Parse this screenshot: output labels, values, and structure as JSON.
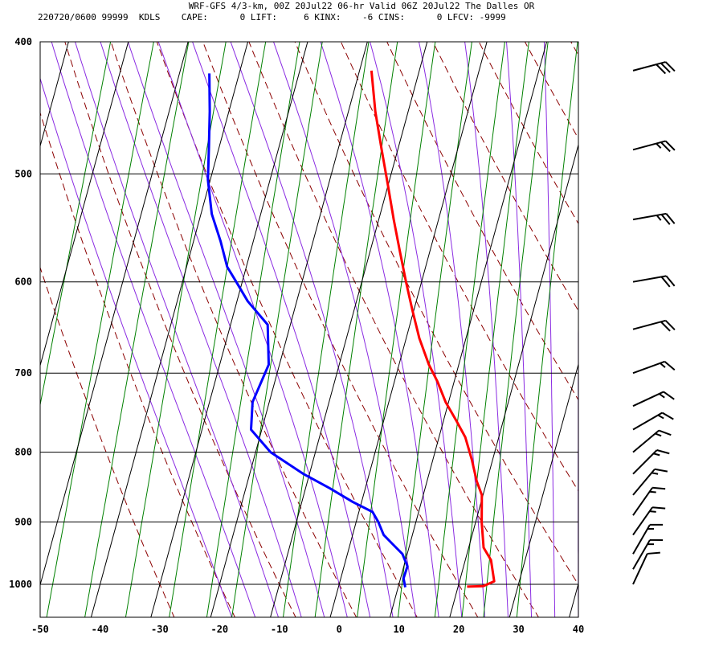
{
  "header": {
    "line1": "WRF-GFS 4/3-km, 00Z 20Jul22 06-hr Valid 06Z 20Jul22 The Dalles OR",
    "line2": "220720/0600 99999  KDLS    CAPE:      0 LIFT:     6 KINX:    -6 CINS:      0 LFCV: -9999"
  },
  "chart_data": {
    "type": "line",
    "chart_kind": "skew-T log-P sounding",
    "x_axis": {
      "ticks": [
        -50,
        -40,
        -30,
        -20,
        -10,
        0,
        10,
        20,
        30,
        40
      ],
      "range": [
        -50,
        40
      ]
    },
    "y_axis": {
      "ticks": [
        400,
        500,
        600,
        700,
        800,
        900,
        1000
      ],
      "range": [
        400,
        1040
      ],
      "scale": "log"
    },
    "grid": true,
    "series": [
      {
        "color": "#ff0000",
        "points": [
          [
            -18.0,
            420
          ],
          [
            -15.5,
            450
          ],
          [
            -12.7,
            480
          ],
          [
            -10.0,
            510
          ],
          [
            -7.5,
            540
          ],
          [
            -5.0,
            570
          ],
          [
            -2.6,
            600
          ],
          [
            -0.2,
            630
          ],
          [
            2.2,
            660
          ],
          [
            5.0,
            690
          ],
          [
            7.2,
            710
          ],
          [
            9.5,
            735
          ],
          [
            12.3,
            760
          ],
          [
            14.4,
            780
          ],
          [
            16.5,
            810
          ],
          [
            18.3,
            840
          ],
          [
            19.8,
            860
          ],
          [
            21.0,
            900
          ],
          [
            22.5,
            940
          ],
          [
            24.3,
            960
          ],
          [
            25.8,
            995
          ],
          [
            24.2,
            1003
          ],
          [
            21.5,
            1004
          ]
        ]
      },
      {
        "color": "#0000ff",
        "points": [
          [
            -45.0,
            422
          ],
          [
            -43.2,
            450
          ],
          [
            -41.6,
            480
          ],
          [
            -40.4,
            505
          ],
          [
            -38.2,
            535
          ],
          [
            -35.5,
            560
          ],
          [
            -33.2,
            585
          ],
          [
            -31.0,
            600
          ],
          [
            -28.2,
            620
          ],
          [
            -23.8,
            645
          ],
          [
            -21.8,
            690
          ],
          [
            -22.8,
            735
          ],
          [
            -21.8,
            770
          ],
          [
            -17.5,
            800
          ],
          [
            -11.0,
            830
          ],
          [
            -6.0,
            850
          ],
          [
            -1.5,
            870
          ],
          [
            2.3,
            885
          ],
          [
            3.7,
            900
          ],
          [
            5.2,
            920
          ],
          [
            7.2,
            935
          ],
          [
            9.2,
            950
          ],
          [
            10.6,
            970
          ],
          [
            10.5,
            990
          ],
          [
            11.2,
            1005
          ]
        ]
      }
    ],
    "wind_barbs": [
      {
        "p": 420,
        "speed": 30,
        "dir": 255
      },
      {
        "p": 480,
        "speed": 25,
        "dir": 255
      },
      {
        "p": 540,
        "speed": 25,
        "dir": 260
      },
      {
        "p": 600,
        "speed": 20,
        "dir": 260
      },
      {
        "p": 650,
        "speed": 20,
        "dir": 255
      },
      {
        "p": 700,
        "speed": 15,
        "dir": 250
      },
      {
        "p": 740,
        "speed": 15,
        "dir": 245
      },
      {
        "p": 770,
        "speed": 15,
        "dir": 240
      },
      {
        "p": 800,
        "speed": 15,
        "dir": 230
      },
      {
        "p": 830,
        "speed": 15,
        "dir": 225
      },
      {
        "p": 860,
        "speed": 15,
        "dir": 220
      },
      {
        "p": 890,
        "speed": 15,
        "dir": 215
      },
      {
        "p": 920,
        "speed": 15,
        "dir": 215
      },
      {
        "p": 950,
        "speed": 15,
        "dir": 210
      },
      {
        "p": 975,
        "speed": 15,
        "dir": 210
      },
      {
        "p": 1000,
        "speed": 10,
        "dir": 205
      }
    ],
    "colors": {
      "isotherm": "#000000",
      "isobar": "#000000",
      "dry_adiabat": "#8b0000",
      "moist_adiabat": "#8a2be2",
      "mixing_ratio": "#008000"
    }
  }
}
